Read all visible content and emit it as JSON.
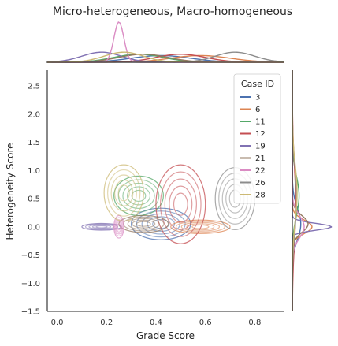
{
  "chart_data": {
    "type": "jointplot-kde",
    "title": "Micro-heterogeneous, Macro-homogeneous",
    "xlabel": "Grade Score",
    "ylabel": "Heterogeneity Score",
    "xlim": [
      -0.04,
      0.92
    ],
    "ylim": [
      -1.5,
      2.78
    ],
    "xticks": [
      "0.0",
      "0.2",
      "0.4",
      "0.6",
      "0.8"
    ],
    "xtick_values": [
      0.0,
      0.2,
      0.4,
      0.6,
      0.8
    ],
    "yticks": [
      "−1.5",
      "−1.0",
      "−0.5",
      "0.0",
      "0.5",
      "1.0",
      "1.5",
      "2.0",
      "2.5"
    ],
    "ytick_values": [
      -1.5,
      -1.0,
      -0.5,
      0.0,
      0.5,
      1.0,
      1.5,
      2.0,
      2.5
    ],
    "grid": false,
    "legend": {
      "title": "Case ID",
      "placement": "top-right",
      "entries": [
        {
          "label": "3",
          "color": "#4c72b0"
        },
        {
          "label": "6",
          "color": "#dd8452"
        },
        {
          "label": "11",
          "color": "#55a868"
        },
        {
          "label": "12",
          "color": "#c44e52"
        },
        {
          "label": "19",
          "color": "#8172b3"
        },
        {
          "label": "21",
          "color": "#937860"
        },
        {
          "label": "22",
          "color": "#da8bc3"
        },
        {
          "label": "26",
          "color": "#8c8c8c"
        },
        {
          "label": "28",
          "color": "#ccb974"
        }
      ]
    },
    "series": [
      {
        "name": "3",
        "color": "#4c72b0",
        "x_center": 0.42,
        "x_spread": 0.12,
        "y_center": 0.05,
        "y_spread": 0.28
      },
      {
        "name": "6",
        "color": "#dd8452",
        "x_center": 0.58,
        "x_spread": 0.12,
        "y_center": 0.0,
        "y_spread": 0.12
      },
      {
        "name": "11",
        "color": "#55a868",
        "x_center": 0.33,
        "x_spread": 0.1,
        "y_center": 0.55,
        "y_spread": 0.35
      },
      {
        "name": "12",
        "color": "#c44e52",
        "x_center": 0.5,
        "x_spread": 0.1,
        "y_center": 0.4,
        "y_spread": 0.7
      },
      {
        "name": "19",
        "color": "#8172b3",
        "x_center": 0.18,
        "x_spread": 0.08,
        "y_center": 0.0,
        "y_spread": 0.06
      },
      {
        "name": "21",
        "color": "#937860",
        "x_center": 0.35,
        "x_spread": 0.1,
        "y_center": 0.05,
        "y_spread": 0.15
      },
      {
        "name": "22",
        "color": "#da8bc3",
        "x_center": 0.25,
        "x_spread": 0.02,
        "y_center": 0.0,
        "y_spread": 0.2
      },
      {
        "name": "26",
        "color": "#8c8c8c",
        "x_center": 0.72,
        "x_spread": 0.08,
        "y_center": 0.5,
        "y_spread": 0.55
      },
      {
        "name": "28",
        "color": "#ccb974",
        "x_center": 0.27,
        "x_spread": 0.08,
        "y_center": 0.6,
        "y_spread": 0.5
      }
    ]
  }
}
